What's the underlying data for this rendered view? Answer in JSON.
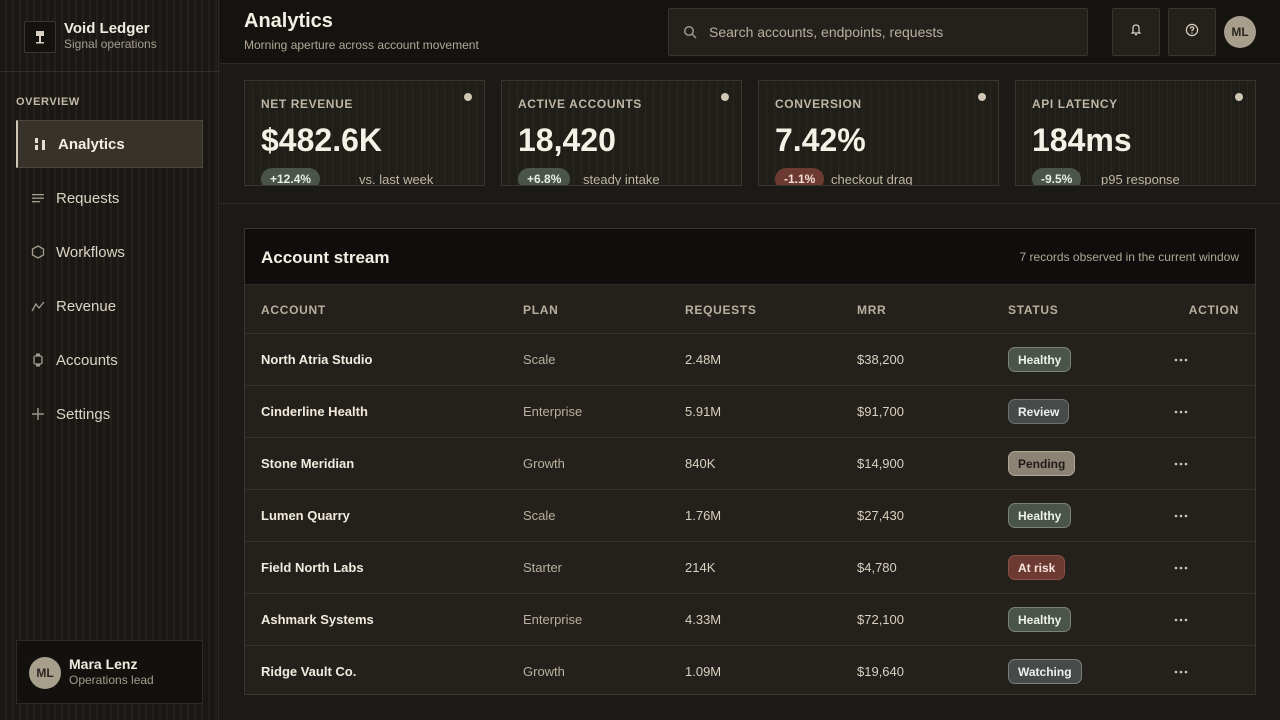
{
  "brand": {
    "name": "Void Ledger",
    "subtitle": "Signal operations",
    "logo_icon": "pin-icon"
  },
  "sidebar": {
    "section": "OVERVIEW",
    "items": [
      {
        "label": "Analytics",
        "icon": "bar-chart-icon",
        "active": true
      },
      {
        "label": "Requests",
        "icon": "list-icon"
      },
      {
        "label": "Workflows",
        "icon": "hexagon-icon"
      },
      {
        "label": "Revenue",
        "icon": "trend-line-icon"
      },
      {
        "label": "Accounts",
        "icon": "watch-icon"
      },
      {
        "label": "Settings",
        "icon": "plus-icon"
      }
    ]
  },
  "profile": {
    "initials": "ML",
    "name": "Mara Lenz",
    "role": "Operations lead"
  },
  "header": {
    "title": "Analytics",
    "subtitle": "Morning aperture across account movement",
    "search_placeholder": "Search accounts, endpoints, requests",
    "avatar_initials": "ML"
  },
  "metrics": [
    {
      "label": "NET REVENUE",
      "value": "$482.6K",
      "delta": "+12.4%",
      "trend": "up",
      "note": "vs. last week"
    },
    {
      "label": "ACTIVE ACCOUNTS",
      "value": "18,420",
      "delta": "+6.8%",
      "trend": "up",
      "note": "steady intake"
    },
    {
      "label": "CONVERSION",
      "value": "7.42%",
      "delta": "-1.1%",
      "trend": "down",
      "note": "checkout drag"
    },
    {
      "label": "API LATENCY",
      "value": "184ms",
      "delta": "-9.5%",
      "trend": "up",
      "note": "p95 response"
    }
  ],
  "table": {
    "title": "Account stream",
    "meta": "7 records observed in the current window",
    "columns": [
      "ACCOUNT",
      "PLAN",
      "REQUESTS",
      "MRR",
      "STATUS",
      "ACTION"
    ],
    "rows": [
      {
        "account": "North Atria Studio",
        "plan": "Scale",
        "requests": "2.48M",
        "mrr": "$38,200",
        "status": "Healthy"
      },
      {
        "account": "Cinderline Health",
        "plan": "Enterprise",
        "requests": "5.91M",
        "mrr": "$91,700",
        "status": "Review"
      },
      {
        "account": "Stone Meridian",
        "plan": "Growth",
        "requests": "840K",
        "mrr": "$14,900",
        "status": "Pending"
      },
      {
        "account": "Lumen Quarry",
        "plan": "Scale",
        "requests": "1.76M",
        "mrr": "$27,430",
        "status": "Healthy"
      },
      {
        "account": "Field North Labs",
        "plan": "Starter",
        "requests": "214K",
        "mrr": "$4,780",
        "status": "At risk"
      },
      {
        "account": "Ashmark Systems",
        "plan": "Enterprise",
        "requests": "4.33M",
        "mrr": "$72,100",
        "status": "Healthy"
      },
      {
        "account": "Ridge Vault Co.",
        "plan": "Growth",
        "requests": "1.09M",
        "mrr": "$19,640",
        "status": "Watching"
      }
    ]
  },
  "colors": {
    "background": "#1c1a16",
    "accent": "#cfc6b4",
    "positive": "#4a5448",
    "negative": "#6d3a31",
    "pending": "#8d8374"
  }
}
